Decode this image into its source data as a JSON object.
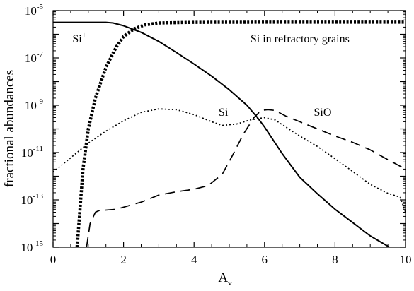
{
  "chart_data": {
    "type": "line",
    "title": "",
    "xlabel": "A",
    "xlabel_subscript": "v",
    "ylabel": "fractional abundances",
    "xlim": [
      0,
      10
    ],
    "ylim_log10": [
      -15,
      -5
    ],
    "y_scale": "log",
    "grid": false,
    "legend": "none (curves labeled inline)",
    "x_ticks": [
      0,
      2,
      4,
      6,
      8,
      10
    ],
    "x_tick_labels": [
      "0",
      "2",
      "4",
      "6",
      "8",
      "10"
    ],
    "y_ticks_log10": [
      -15,
      -13,
      -11,
      -9,
      -7,
      -5
    ],
    "y_tick_labels": [
      {
        "base": "10",
        "exp": "-15"
      },
      {
        "base": "10",
        "exp": "-13"
      },
      {
        "base": "10",
        "exp": "-11"
      },
      {
        "base": "10",
        "exp": "-9"
      },
      {
        "base": "10",
        "exp": "-7"
      },
      {
        "base": "10",
        "exp": "-5"
      }
    ],
    "series": [
      {
        "name": "Si+",
        "style": "solid",
        "points": [
          [
            0.0,
            3.2e-06
          ],
          [
            1.5,
            3.2e-06
          ],
          [
            1.7,
            3e-06
          ],
          [
            2.0,
            2.3e-06
          ],
          [
            2.5,
            1.2e-06
          ],
          [
            3.0,
            5e-07
          ],
          [
            3.5,
            1.7e-07
          ],
          [
            4.0,
            5.5e-08
          ],
          [
            4.5,
            1.7e-08
          ],
          [
            5.0,
            4.5e-09
          ],
          [
            5.5,
            1e-09
          ],
          [
            5.8,
            3e-10
          ],
          [
            6.0,
            1.2e-10
          ],
          [
            6.5,
            9e-12
          ],
          [
            7.0,
            9e-13
          ],
          [
            7.5,
            1.8e-13
          ],
          [
            8.0,
            4e-14
          ],
          [
            8.5,
            1.1e-14
          ],
          [
            9.0,
            3e-15
          ],
          [
            9.5,
            1.1e-15
          ],
          [
            9.75,
            6e-16
          ],
          [
            9.9,
            3e-16
          ],
          [
            10.0,
            1e-16
          ]
        ]
      },
      {
        "name": "Si in refractory grains",
        "style": "heavy-dotted",
        "points": [
          [
            0.68,
            1e-15
          ],
          [
            0.75,
            2e-14
          ],
          [
            0.85,
            2e-12
          ],
          [
            1.0,
            1e-10
          ],
          [
            1.2,
            2e-09
          ],
          [
            1.5,
            4e-08
          ],
          [
            1.8,
            3e-07
          ],
          [
            2.0,
            8e-07
          ],
          [
            2.3,
            1.7e-06
          ],
          [
            2.6,
            2.5e-06
          ],
          [
            3.0,
            3e-06
          ],
          [
            4.0,
            3.2e-06
          ],
          [
            6.0,
            3.25e-06
          ],
          [
            10.0,
            3.25e-06
          ]
        ]
      },
      {
        "name": "Si",
        "style": "dotted",
        "points": [
          [
            0.0,
            1.5e-12
          ],
          [
            0.5,
            6e-12
          ],
          [
            1.0,
            2.5e-11
          ],
          [
            1.5,
            8e-11
          ],
          [
            2.0,
            2.2e-10
          ],
          [
            2.5,
            5e-10
          ],
          [
            3.0,
            7e-10
          ],
          [
            3.5,
            6.5e-10
          ],
          [
            4.0,
            4e-10
          ],
          [
            4.5,
            2e-10
          ],
          [
            4.8,
            1.4e-10
          ],
          [
            5.2,
            1.6e-10
          ],
          [
            5.6,
            2.4e-10
          ],
          [
            6.0,
            3e-10
          ],
          [
            6.3,
            2.4e-10
          ],
          [
            6.6,
            1.2e-10
          ],
          [
            7.0,
            5e-11
          ],
          [
            7.5,
            1.8e-11
          ],
          [
            8.0,
            5.5e-12
          ],
          [
            8.5,
            1.6e-12
          ],
          [
            9.0,
            4.5e-13
          ],
          [
            9.5,
            1.9e-13
          ],
          [
            9.85,
            1.3e-13
          ],
          [
            10.0,
            3e-14
          ]
        ]
      },
      {
        "name": "SiO",
        "style": "dashed",
        "points": [
          [
            0.95,
            1e-15
          ],
          [
            1.05,
            1e-14
          ],
          [
            1.2,
            3e-14
          ],
          [
            1.3,
            3.5e-14
          ],
          [
            1.8,
            4e-14
          ],
          [
            2.5,
            8e-14
          ],
          [
            3.0,
            1.6e-13
          ],
          [
            3.5,
            2.2e-13
          ],
          [
            4.0,
            2.8e-13
          ],
          [
            4.4,
            4e-13
          ],
          [
            4.8,
            1.2e-12
          ],
          [
            5.1,
            8e-12
          ],
          [
            5.4,
            6e-11
          ],
          [
            5.7,
            3e-10
          ],
          [
            5.9,
            6e-10
          ],
          [
            6.1,
            6.5e-10
          ],
          [
            6.3,
            6e-10
          ],
          [
            6.6,
            3.5e-10
          ],
          [
            7.0,
            2e-10
          ],
          [
            7.5,
            1e-10
          ],
          [
            8.0,
            5e-11
          ],
          [
            8.5,
            2.7e-11
          ],
          [
            9.0,
            1.3e-11
          ],
          [
            9.5,
            5e-12
          ],
          [
            10.0,
            2e-12
          ]
        ]
      }
    ],
    "annotations": [
      {
        "id": "si-plus",
        "base": "Si",
        "sup": "+",
        "x": 0.55,
        "y_log10": -6.35
      },
      {
        "id": "si-grains",
        "text": "Si in refractory grains",
        "x": 5.6,
        "y_log10": -6.35
      },
      {
        "id": "si",
        "text": "Si",
        "x": 4.7,
        "y_log10": -9.45
      },
      {
        "id": "sio",
        "text": "SiO",
        "x": 7.4,
        "y_log10": -9.45
      }
    ]
  }
}
